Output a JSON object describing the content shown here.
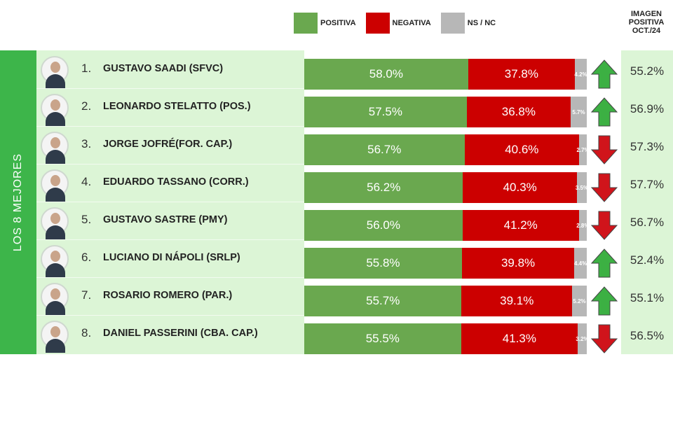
{
  "colors": {
    "positiva": "#6aa84f",
    "negativa": "#cc0000",
    "nsnc": "#b7b7b7",
    "up": "#3cb043",
    "down": "#d0141b"
  },
  "chart_data": {
    "type": "bar",
    "stacked": true,
    "orientation": "horizontal",
    "side_label": "LOS 8 MEJORES",
    "legend": [
      "POSITIVA",
      "NEGATIVA",
      "NS / NC"
    ],
    "legend_placement": "top",
    "extra_column_header": [
      "IMAGEN",
      "POSITIVA",
      "OCT./24"
    ],
    "rows": [
      {
        "rank": "1.",
        "name": "GUSTAVO SAADI (SFVC)",
        "positiva": 58.0,
        "negativa": 37.8,
        "nsnc": 4.2,
        "positiva_label": "58.0%",
        "negativa_label": "37.8%",
        "nsnc_label": "4.2%",
        "trend": "up",
        "oct24": "55.2%"
      },
      {
        "rank": "2.",
        "name": "LEONARDO STELATTO (POS.)",
        "positiva": 57.5,
        "negativa": 36.8,
        "nsnc": 5.7,
        "positiva_label": "57.5%",
        "negativa_label": "36.8%",
        "nsnc_label": "5.7%",
        "trend": "up",
        "oct24": "56.9%"
      },
      {
        "rank": "3.",
        "name": "JORGE JOFRÉ(FOR. CAP.)",
        "positiva": 56.7,
        "negativa": 40.6,
        "nsnc": 2.7,
        "positiva_label": "56.7%",
        "negativa_label": "40.6%",
        "nsnc_label": "2.7%",
        "trend": "down",
        "oct24": "57.3%"
      },
      {
        "rank": "4.",
        "name": "EDUARDO TASSANO (CORR.)",
        "positiva": 56.2,
        "negativa": 40.3,
        "nsnc": 3.5,
        "positiva_label": "56.2%",
        "negativa_label": "40.3%",
        "nsnc_label": "3.5%",
        "trend": "down",
        "oct24": "57.7%"
      },
      {
        "rank": "5.",
        "name": "GUSTAVO SASTRE (PMY)",
        "positiva": 56.0,
        "negativa": 41.2,
        "nsnc": 2.8,
        "positiva_label": "56.0%",
        "negativa_label": "41.2%",
        "nsnc_label": "2.8%",
        "trend": "down",
        "oct24": "56.7%"
      },
      {
        "rank": "6.",
        "name": "LUCIANO DI NÁPOLI (SRLP)",
        "positiva": 55.8,
        "negativa": 39.8,
        "nsnc": 4.4,
        "positiva_label": "55.8%",
        "negativa_label": "39.8%",
        "nsnc_label": "4.4%",
        "trend": "up",
        "oct24": "52.4%"
      },
      {
        "rank": "7.",
        "name": "ROSARIO ROMERO (PAR.)",
        "positiva": 55.7,
        "negativa": 39.1,
        "nsnc": 5.2,
        "positiva_label": "55.7%",
        "negativa_label": "39.1%",
        "nsnc_label": "5.2%",
        "trend": "up",
        "oct24": "55.1%"
      },
      {
        "rank": "8.",
        "name": "DANIEL PASSERINI (CBA. CAP.)",
        "positiva": 55.5,
        "negativa": 41.3,
        "nsnc": 3.2,
        "positiva_label": "55.5%",
        "negativa_label": "41.3%",
        "nsnc_label": "3.2%",
        "trend": "down",
        "oct24": "56.5%"
      }
    ]
  }
}
